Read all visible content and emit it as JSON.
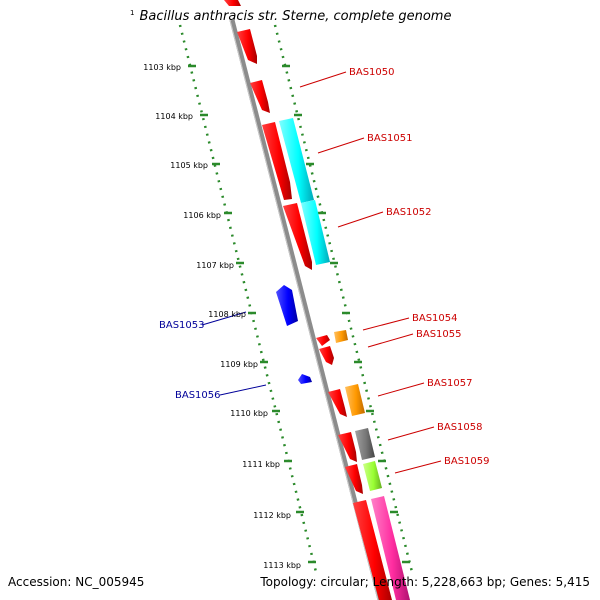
{
  "header": {
    "number": "1",
    "title": "Bacillus anthracis str. Sterne, complete genome"
  },
  "footer": {
    "accession": "Accession: NC_005945",
    "topology": "Topology: circular; Length: 5,228,663 bp; Genes: 5,415"
  },
  "ruler": {
    "labels": [
      "1103 kbp",
      "1104 kbp",
      "1105 kbp",
      "1106 kbp",
      "1107 kbp",
      "1108 kbp",
      "1109 kbp",
      "1110 kbp",
      "1111 kbp",
      "1112 kbp",
      "1113 kbp"
    ]
  },
  "genes": {
    "forward": [
      "BAS1050",
      "BAS1051",
      "BAS1052",
      "BAS1054",
      "BAS1055",
      "BAS1057",
      "BAS1058",
      "BAS1059"
    ],
    "reverse": [
      "BAS1053",
      "BAS1056"
    ]
  },
  "colors": {
    "forward_label": "#cc0000",
    "reverse_label": "#000099",
    "backbone": "#8c8c8c",
    "ruler": "#2b8a2b",
    "cds_red": "#ff0000",
    "cds_cyan": "#00ffff",
    "cds_orange": "#ff9900",
    "cds_gray": "#777777",
    "cds_lime": "#99ff33",
    "cds_pink": "#ff2da0",
    "cds_blue": "#0000ff"
  }
}
